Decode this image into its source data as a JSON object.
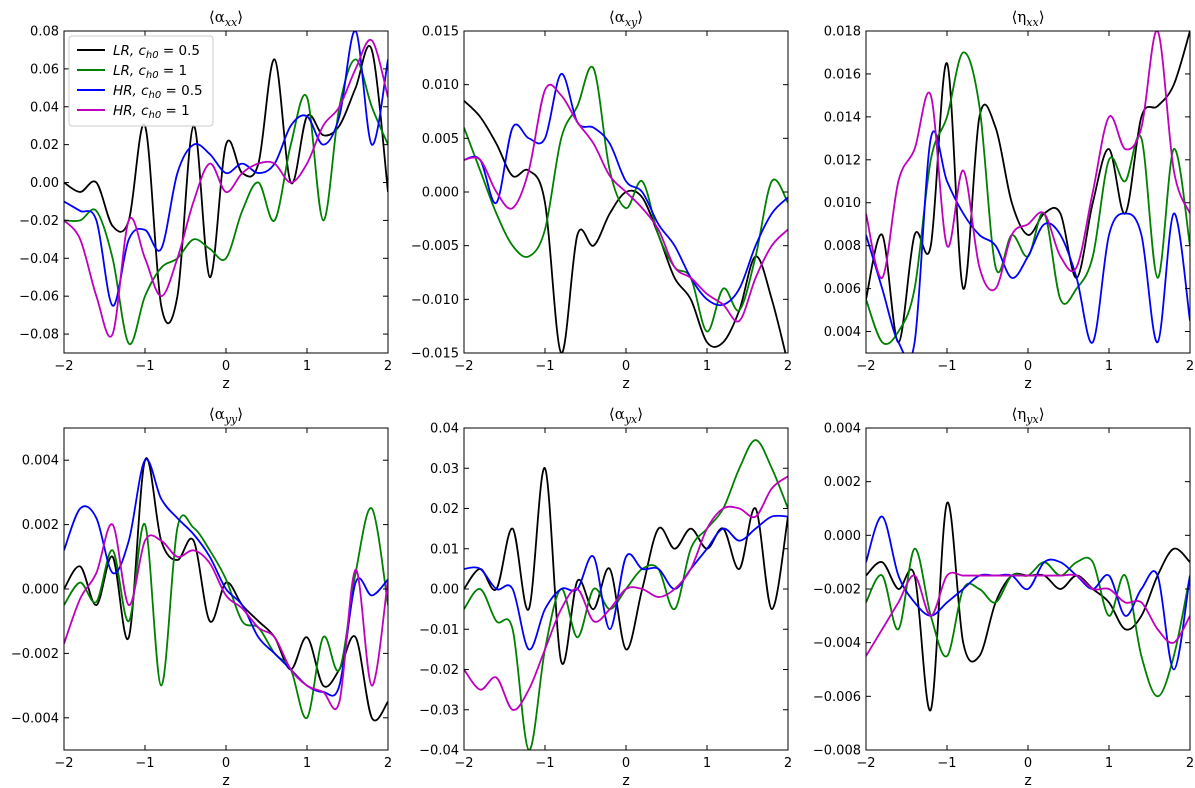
{
  "figure": {
    "legend": {
      "placement": "top-left of first panel",
      "entries": [
        {
          "series": "LR_0.5",
          "text": "LR, c_h0 = 0.5"
        },
        {
          "series": "LR_1",
          "text": "LR, c_h0 = 1"
        },
        {
          "series": "HR_0.5",
          "text": "HR, c_h0 = 0.5"
        },
        {
          "series": "HR_1",
          "text": "HR, c_h0 = 1"
        }
      ]
    },
    "colors": {
      "LR_0.5": "#000000",
      "LR_1": "#008000",
      "HR_0.5": "#0000ff",
      "HR_1": "#bf00bf"
    }
  },
  "chart_data": [
    {
      "type": "line",
      "title": "⟨α_xx⟩",
      "xlabel": "z",
      "ylabel": "",
      "xlim": [
        -2,
        2
      ],
      "ylim": [
        -0.09,
        0.08
      ],
      "xticks": [
        -2,
        -1,
        0,
        1,
        2
      ],
      "xticklabels": [
        "−2",
        "−1",
        "0",
        "1",
        "2"
      ],
      "yticks": [
        -0.08,
        -0.06,
        -0.04,
        -0.02,
        0.0,
        0.02,
        0.04,
        0.06,
        0.08
      ],
      "yticklabels": [
        "−0.08",
        "−0.06",
        "−0.04",
        "−0.02",
        "0.00",
        "0.02",
        "0.04",
        "0.06",
        "0.08"
      ],
      "x": [
        -2.0,
        -1.8,
        -1.6,
        -1.4,
        -1.2,
        -1.0,
        -0.8,
        -0.6,
        -0.4,
        -0.2,
        0.0,
        0.2,
        0.4,
        0.6,
        0.8,
        1.0,
        1.2,
        1.4,
        1.6,
        1.8,
        2.0
      ],
      "series": [
        {
          "name": "LR_0.5",
          "values": [
            0.0,
            -0.005,
            0.0,
            -0.023,
            -0.02,
            0.03,
            -0.065,
            -0.06,
            0.03,
            -0.05,
            0.02,
            0.005,
            0.01,
            0.065,
            0.0,
            0.035,
            0.025,
            0.03,
            0.05,
            0.07,
            -0.005
          ]
        },
        {
          "name": "LR_1",
          "values": [
            -0.02,
            -0.02,
            -0.015,
            -0.04,
            -0.085,
            -0.06,
            -0.045,
            -0.04,
            -0.03,
            -0.035,
            -0.04,
            -0.015,
            0.0,
            -0.02,
            0.02,
            0.045,
            -0.02,
            0.04,
            0.065,
            0.04,
            0.02
          ]
        },
        {
          "name": "HR_0.5",
          "values": [
            -0.01,
            -0.015,
            -0.02,
            -0.065,
            -0.03,
            -0.025,
            -0.035,
            0.005,
            0.02,
            0.015,
            0.005,
            0.01,
            0.005,
            0.01,
            0.03,
            0.035,
            0.02,
            0.035,
            0.08,
            0.02,
            0.065
          ]
        },
        {
          "name": "HR_1",
          "values": [
            -0.02,
            -0.03,
            -0.06,
            -0.08,
            -0.02,
            -0.04,
            -0.06,
            -0.04,
            -0.01,
            0.01,
            -0.005,
            0.005,
            0.01,
            0.01,
            0.0,
            0.01,
            0.03,
            0.04,
            0.06,
            0.075,
            0.045
          ]
        }
      ]
    },
    {
      "type": "line",
      "title": "⟨α_xy⟩",
      "xlabel": "z",
      "ylabel": "",
      "xlim": [
        -2,
        2
      ],
      "ylim": [
        -0.015,
        0.015
      ],
      "xticks": [
        -2,
        -1,
        0,
        1,
        2
      ],
      "xticklabels": [
        "−2",
        "−1",
        "0",
        "1",
        "2"
      ],
      "yticks": [
        -0.015,
        -0.01,
        -0.005,
        0.0,
        0.005,
        0.01,
        0.015
      ],
      "yticklabels": [
        "−0.015",
        "−0.010",
        "−0.005",
        "0.000",
        "0.005",
        "0.010",
        "0.015"
      ],
      "x": [
        -2.0,
        -1.8,
        -1.6,
        -1.4,
        -1.2,
        -1.0,
        -0.8,
        -0.6,
        -0.4,
        -0.2,
        0.0,
        0.2,
        0.4,
        0.6,
        0.8,
        1.0,
        1.2,
        1.4,
        1.6,
        1.8,
        2.0
      ],
      "series": [
        {
          "name": "LR_0.5",
          "values": [
            0.0085,
            0.007,
            0.0045,
            0.0015,
            0.002,
            -0.001,
            -0.015,
            -0.004,
            -0.005,
            -0.002,
            0.0,
            -0.0005,
            -0.004,
            -0.008,
            -0.01,
            -0.014,
            -0.014,
            -0.011,
            -0.006,
            -0.01,
            -0.016
          ]
        },
        {
          "name": "LR_1",
          "values": [
            0.006,
            0.002,
            -0.002,
            -0.005,
            -0.006,
            -0.0035,
            0.005,
            0.008,
            0.0115,
            0.002,
            -0.0015,
            0.001,
            -0.004,
            -0.007,
            -0.008,
            -0.013,
            -0.009,
            -0.011,
            -0.006,
            0.001,
            -0.001
          ]
        },
        {
          "name": "HR_0.5",
          "values": [
            0.003,
            0.003,
            -0.001,
            0.006,
            0.005,
            0.005,
            0.011,
            0.0065,
            0.006,
            0.0045,
            0.001,
            0.0,
            -0.003,
            -0.005,
            -0.008,
            -0.01,
            -0.0105,
            -0.009,
            -0.005,
            -0.002,
            -0.0005
          ]
        },
        {
          "name": "HR_1",
          "values": [
            0.003,
            0.003,
            0.0,
            -0.0015,
            0.002,
            0.0095,
            0.009,
            0.0065,
            0.0045,
            0.0015,
            0.0,
            -0.0015,
            -0.0035,
            -0.007,
            -0.008,
            -0.0095,
            -0.0105,
            -0.012,
            -0.008,
            -0.005,
            -0.0035
          ]
        }
      ]
    },
    {
      "type": "line",
      "title": "⟨η_xx⟩",
      "xlabel": "z",
      "ylabel": "",
      "xlim": [
        -2,
        2
      ],
      "ylim": [
        0.003,
        0.018
      ],
      "xticks": [
        -2,
        -1,
        0,
        1,
        2
      ],
      "xticklabels": [
        "−2",
        "−1",
        "0",
        "1",
        "2"
      ],
      "yticks": [
        0.004,
        0.006,
        0.008,
        0.01,
        0.012,
        0.014,
        0.016,
        0.018
      ],
      "yticklabels": [
        "0.004",
        "0.006",
        "0.008",
        "0.010",
        "0.012",
        "0.014",
        "0.016",
        "0.018"
      ],
      "x": [
        -2.0,
        -1.8,
        -1.6,
        -1.4,
        -1.2,
        -1.0,
        -0.8,
        -0.6,
        -0.4,
        -0.2,
        0.0,
        0.2,
        0.4,
        0.6,
        0.8,
        1.0,
        1.2,
        1.4,
        1.6,
        1.8,
        2.0
      ],
      "series": [
        {
          "name": "LR_0.5",
          "values": [
            0.0055,
            0.0085,
            0.0035,
            0.0085,
            0.008,
            0.0165,
            0.006,
            0.014,
            0.0135,
            0.01,
            0.0085,
            0.0095,
            0.0095,
            0.0065,
            0.01,
            0.0125,
            0.0095,
            0.014,
            0.0145,
            0.0155,
            0.018
          ]
        },
        {
          "name": "LR_1",
          "values": [
            0.0055,
            0.0035,
            0.004,
            0.006,
            0.012,
            0.014,
            0.017,
            0.0145,
            0.007,
            0.0085,
            0.0075,
            0.0095,
            0.0055,
            0.006,
            0.0075,
            0.012,
            0.011,
            0.013,
            0.0065,
            0.0125,
            0.008
          ]
        },
        {
          "name": "HR_0.5",
          "values": [
            0.0085,
            0.006,
            0.0035,
            0.0035,
            0.013,
            0.011,
            0.0095,
            0.0085,
            0.008,
            0.0065,
            0.0075,
            0.009,
            0.0085,
            0.0065,
            0.0035,
            0.0085,
            0.0095,
            0.0085,
            0.0035,
            0.0095,
            0.0045
          ]
        },
        {
          "name": "HR_1",
          "values": [
            0.0095,
            0.0065,
            0.011,
            0.0125,
            0.015,
            0.008,
            0.0115,
            0.007,
            0.006,
            0.0085,
            0.009,
            0.0095,
            0.0075,
            0.007,
            0.0105,
            0.014,
            0.0125,
            0.0135,
            0.018,
            0.0115,
            0.0095
          ]
        }
      ]
    },
    {
      "type": "line",
      "title": "⟨α_yy⟩",
      "xlabel": "z",
      "ylabel": "",
      "xlim": [
        -2,
        2
      ],
      "ylim": [
        -0.005,
        0.005
      ],
      "xticks": [
        -2,
        -1,
        0,
        1,
        2
      ],
      "xticklabels": [
        "−2",
        "−1",
        "0",
        "1",
        "2"
      ],
      "yticks": [
        -0.004,
        -0.002,
        0.0,
        0.002,
        0.004
      ],
      "yticklabels": [
        "−0.004",
        "−0.002",
        "0.000",
        "0.002",
        "0.004"
      ],
      "x": [
        -2.0,
        -1.8,
        -1.6,
        -1.4,
        -1.2,
        -1.0,
        -0.8,
        -0.6,
        -0.4,
        -0.2,
        0.0,
        0.2,
        0.4,
        0.6,
        0.8,
        1.0,
        1.2,
        1.4,
        1.6,
        1.8,
        2.0
      ],
      "series": [
        {
          "name": "LR_0.5",
          "values": [
            0.0,
            0.0007,
            -0.0005,
            0.001,
            -0.0015,
            0.004,
            0.0015,
            0.0009,
            0.0015,
            -0.001,
            0.0002,
            -0.0005,
            -0.001,
            -0.0015,
            -0.0025,
            -0.0015,
            -0.003,
            -0.0025,
            -0.0015,
            -0.004,
            -0.0035
          ]
        },
        {
          "name": "LR_1",
          "values": [
            -0.0005,
            0.0002,
            -0.0004,
            0.0012,
            -0.001,
            0.002,
            -0.003,
            0.0019,
            0.0019,
            0.0012,
            0.0003,
            -0.001,
            -0.0012,
            -0.002,
            -0.0025,
            -0.004,
            -0.0015,
            -0.0025,
            0.0005,
            0.0025,
            -0.0005
          ]
        },
        {
          "name": "HR_0.5",
          "values": [
            0.0012,
            0.0025,
            0.0022,
            0.0005,
            0.0015,
            0.004,
            0.0028,
            0.0022,
            0.0017,
            0.001,
            0.0,
            -0.0005,
            -0.0015,
            -0.002,
            -0.0025,
            -0.003,
            -0.0032,
            -0.003,
            0.0002,
            -0.0002,
            0.0003
          ]
        },
        {
          "name": "HR_1",
          "values": [
            -0.0017,
            -0.0003,
            0.0005,
            0.002,
            -0.0005,
            0.0015,
            0.0015,
            0.001,
            0.0012,
            0.0008,
            -0.0002,
            -0.0006,
            -0.0012,
            -0.0015,
            -0.0025,
            -0.003,
            -0.0032,
            -0.0035,
            0.0006,
            -0.003,
            0.0003
          ]
        }
      ]
    },
    {
      "type": "line",
      "title": "⟨α_yx⟩",
      "xlabel": "z",
      "ylabel": "",
      "xlim": [
        -2,
        2
      ],
      "ylim": [
        -0.04,
        0.04
      ],
      "xticks": [
        -2,
        -1,
        0,
        1,
        2
      ],
      "xticklabels": [
        "−2",
        "−1",
        "0",
        "1",
        "2"
      ],
      "yticks": [
        -0.04,
        -0.03,
        -0.02,
        -0.01,
        0.0,
        0.01,
        0.02,
        0.03,
        0.04
      ],
      "yticklabels": [
        "−0.04",
        "−0.03",
        "−0.02",
        "−0.01",
        "0.00",
        "0.01",
        "0.02",
        "0.03",
        "0.04"
      ],
      "x": [
        -2.0,
        -1.8,
        -1.6,
        -1.4,
        -1.2,
        -1.0,
        -0.8,
        -0.6,
        -0.4,
        -0.2,
        0.0,
        0.2,
        0.4,
        0.6,
        0.8,
        1.0,
        1.2,
        1.4,
        1.6,
        1.8,
        2.0
      ],
      "series": [
        {
          "name": "LR_0.5",
          "values": [
            0.0,
            0.005,
            0.0,
            0.015,
            -0.005,
            0.03,
            -0.018,
            0.002,
            -0.005,
            0.005,
            -0.015,
            0.0,
            0.015,
            0.01,
            0.015,
            0.01,
            0.015,
            0.005,
            0.02,
            -0.005,
            0.018
          ]
        },
        {
          "name": "LR_1",
          "values": [
            -0.005,
            0.0,
            -0.008,
            -0.01,
            -0.04,
            -0.015,
            0.0,
            -0.012,
            0.0,
            -0.005,
            0.0,
            0.005,
            0.005,
            -0.005,
            0.01,
            0.015,
            0.02,
            0.03,
            0.037,
            0.03,
            0.02
          ]
        },
        {
          "name": "HR_0.5",
          "values": [
            0.005,
            0.005,
            0.0,
            0.0,
            -0.015,
            -0.005,
            0.0,
            0.0,
            0.008,
            -0.01,
            0.008,
            0.005,
            0.005,
            0.0,
            0.005,
            0.01,
            0.015,
            0.012,
            0.015,
            0.018,
            0.018
          ]
        },
        {
          "name": "HR_1",
          "values": [
            -0.02,
            -0.025,
            -0.022,
            -0.03,
            -0.025,
            -0.015,
            -0.005,
            0.0,
            -0.008,
            -0.005,
            0.0,
            0.0,
            -0.002,
            0.0,
            0.005,
            0.015,
            0.02,
            0.02,
            0.018,
            0.025,
            0.028
          ]
        }
      ]
    },
    {
      "type": "line",
      "title": "⟨η_yx⟩",
      "xlabel": "z",
      "ylabel": "",
      "xlim": [
        -2,
        2
      ],
      "ylim": [
        -0.008,
        0.004
      ],
      "xticks": [
        -2,
        -1,
        0,
        1,
        2
      ],
      "xticklabels": [
        "−2",
        "−1",
        "0",
        "1",
        "2"
      ],
      "yticks": [
        -0.008,
        -0.006,
        -0.004,
        -0.002,
        0.0,
        0.002,
        0.004
      ],
      "yticklabels": [
        "−0.008",
        "−0.006",
        "−0.004",
        "−0.002",
        "0.000",
        "0.002",
        "0.004"
      ],
      "x": [
        -2.0,
        -1.8,
        -1.6,
        -1.4,
        -1.2,
        -1.0,
        -0.8,
        -0.6,
        -0.4,
        -0.2,
        0.0,
        0.2,
        0.4,
        0.6,
        0.8,
        1.0,
        1.2,
        1.4,
        1.6,
        1.8,
        2.0
      ],
      "series": [
        {
          "name": "LR_0.5",
          "values": [
            -0.0015,
            -0.001,
            -0.002,
            -0.0015,
            -0.0065,
            0.0012,
            -0.004,
            -0.0045,
            -0.0025,
            -0.0015,
            -0.0015,
            -0.0015,
            -0.002,
            -0.0015,
            -0.002,
            -0.0025,
            -0.0035,
            -0.003,
            -0.0015,
            -0.0005,
            -0.001
          ]
        },
        {
          "name": "LR_1",
          "values": [
            -0.0025,
            -0.0015,
            -0.0035,
            -0.0005,
            -0.003,
            -0.0045,
            -0.002,
            -0.002,
            -0.0025,
            -0.0015,
            -0.0015,
            -0.001,
            -0.0015,
            -0.001,
            -0.001,
            -0.003,
            -0.0015,
            -0.0045,
            -0.006,
            -0.0045,
            -0.0015
          ]
        },
        {
          "name": "HR_0.5",
          "values": [
            -0.001,
            0.0007,
            -0.0015,
            -0.0025,
            -0.003,
            -0.0025,
            -0.002,
            -0.0015,
            -0.0015,
            -0.0015,
            -0.002,
            -0.001,
            -0.001,
            -0.0015,
            -0.002,
            -0.0015,
            -0.003,
            -0.002,
            -0.0015,
            -0.005,
            -0.0015
          ]
        },
        {
          "name": "HR_1",
          "values": [
            -0.0045,
            -0.0035,
            -0.0025,
            -0.0015,
            -0.003,
            -0.0015,
            -0.0015,
            -0.0015,
            -0.0015,
            -0.0015,
            -0.0015,
            -0.0015,
            -0.0015,
            -0.0015,
            -0.002,
            -0.002,
            -0.0025,
            -0.0025,
            -0.0035,
            -0.004,
            -0.003
          ]
        }
      ]
    }
  ]
}
